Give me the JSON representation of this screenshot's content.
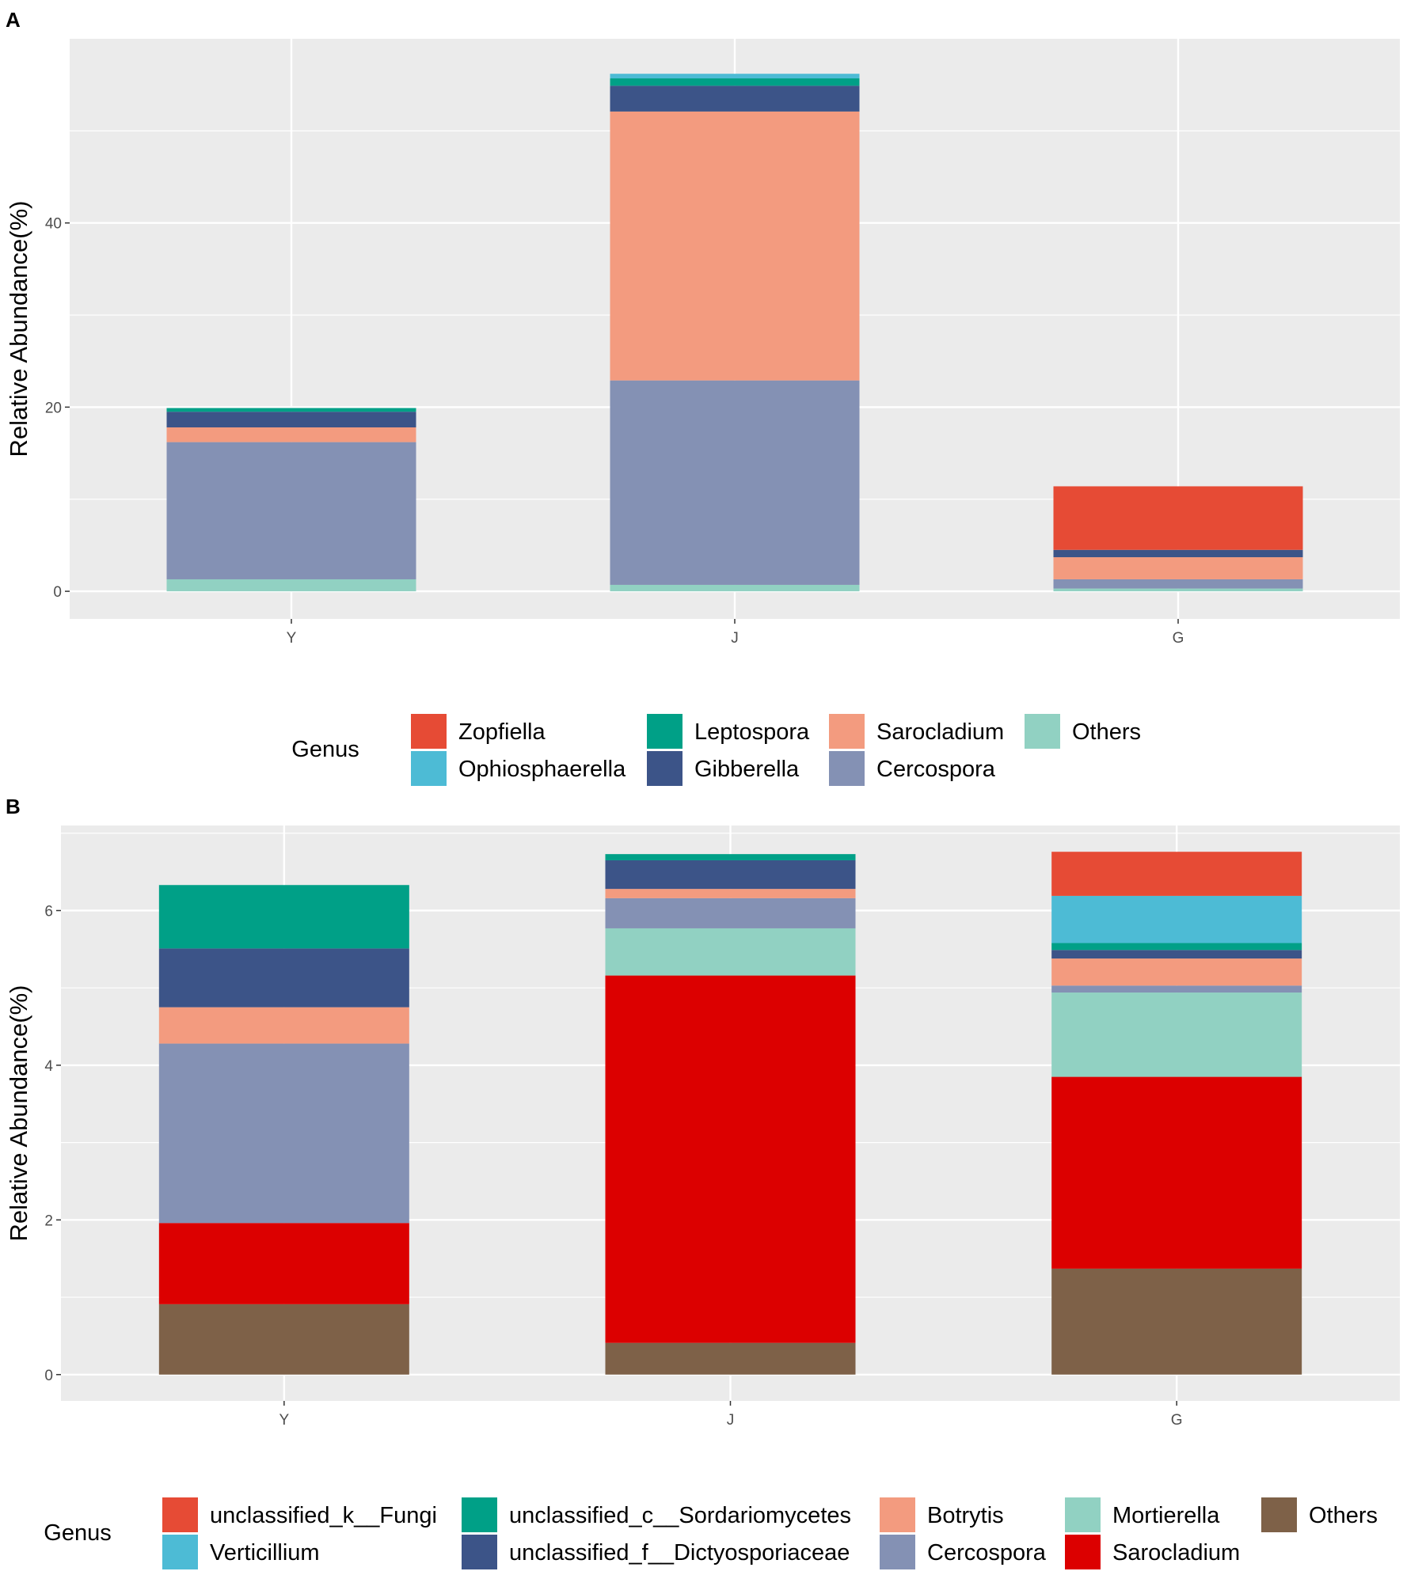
{
  "chart_data": [
    {
      "type": "bar",
      "stacked": true,
      "panel": "A",
      "categories": [
        "Y",
        "J",
        "G"
      ],
      "ylabel": "Relative Abundance(%)",
      "xlabel": "",
      "ylim": [
        -3,
        60
      ],
      "yticks": [
        0,
        20,
        40
      ],
      "grid": true,
      "legend": {
        "title": "Genus",
        "position": "bottom",
        "entries": [
          "Zopfiella",
          "Ophiosphaerella",
          "Leptospora",
          "Gibberella",
          "Sarocladium",
          "Cercospora",
          "Others"
        ]
      },
      "series": [
        {
          "name": "Others",
          "color": "#91D1C2",
          "values": [
            1.3,
            0.7,
            0.3
          ]
        },
        {
          "name": "Cercospora",
          "color": "#8491B4",
          "values": [
            14.9,
            22.2,
            1.0
          ]
        },
        {
          "name": "Sarocladium",
          "color": "#F39B7F",
          "values": [
            1.6,
            29.2,
            2.4
          ]
        },
        {
          "name": "Gibberella",
          "color": "#3C5488",
          "values": [
            1.7,
            2.8,
            0.8
          ]
        },
        {
          "name": "Leptospora",
          "color": "#00A087",
          "values": [
            0.4,
            0.8,
            0.0
          ]
        },
        {
          "name": "Ophiosphaerella",
          "color": "#4DBBD5",
          "values": [
            0.0,
            0.5,
            0.0
          ]
        },
        {
          "name": "Zopfiella",
          "color": "#E64B35",
          "values": [
            0.0,
            0.0,
            6.9
          ]
        }
      ]
    },
    {
      "type": "bar",
      "stacked": true,
      "panel": "B",
      "categories": [
        "Y",
        "J",
        "G"
      ],
      "ylabel": "Relative Abundance(%)",
      "xlabel": "",
      "ylim": [
        -0.34,
        7.1
      ],
      "yticks": [
        0,
        2,
        4,
        6
      ],
      "grid": true,
      "legend": {
        "title": "Genus",
        "position": "bottom",
        "entries": [
          "unclassified_k__Fungi",
          "Verticillium",
          "unclassified_c__Sordariomycetes",
          "unclassified_f__Dictyosporiaceae",
          "Botrytis",
          "Cercospora",
          "Mortierella",
          "Sarocladium",
          "Others"
        ]
      },
      "series": [
        {
          "name": "Others",
          "color": "#7E6148",
          "values": [
            0.91,
            0.41,
            1.37
          ]
        },
        {
          "name": "Sarocladium",
          "color": "#DC0000",
          "values": [
            1.05,
            4.75,
            2.48
          ]
        },
        {
          "name": "Mortierella",
          "color": "#91D1C2",
          "values": [
            0.0,
            0.61,
            1.09
          ]
        },
        {
          "name": "Cercospora",
          "color": "#8491B4",
          "values": [
            2.32,
            0.39,
            0.09
          ]
        },
        {
          "name": "Botrytis",
          "color": "#F39B7F",
          "values": [
            0.47,
            0.12,
            0.35
          ]
        },
        {
          "name": "unclassified_f__Dictyosporiaceae",
          "color": "#3C5488",
          "values": [
            0.76,
            0.37,
            0.11
          ]
        },
        {
          "name": "unclassified_c__Sordariomycetes",
          "color": "#00A087",
          "values": [
            0.82,
            0.08,
            0.09
          ]
        },
        {
          "name": "Verticillium",
          "color": "#4DBBD5",
          "values": [
            0.0,
            0.0,
            0.61
          ]
        },
        {
          "name": "unclassified_k__Fungi",
          "color": "#E64B35",
          "values": [
            0.0,
            0.0,
            0.57
          ]
        }
      ]
    }
  ]
}
